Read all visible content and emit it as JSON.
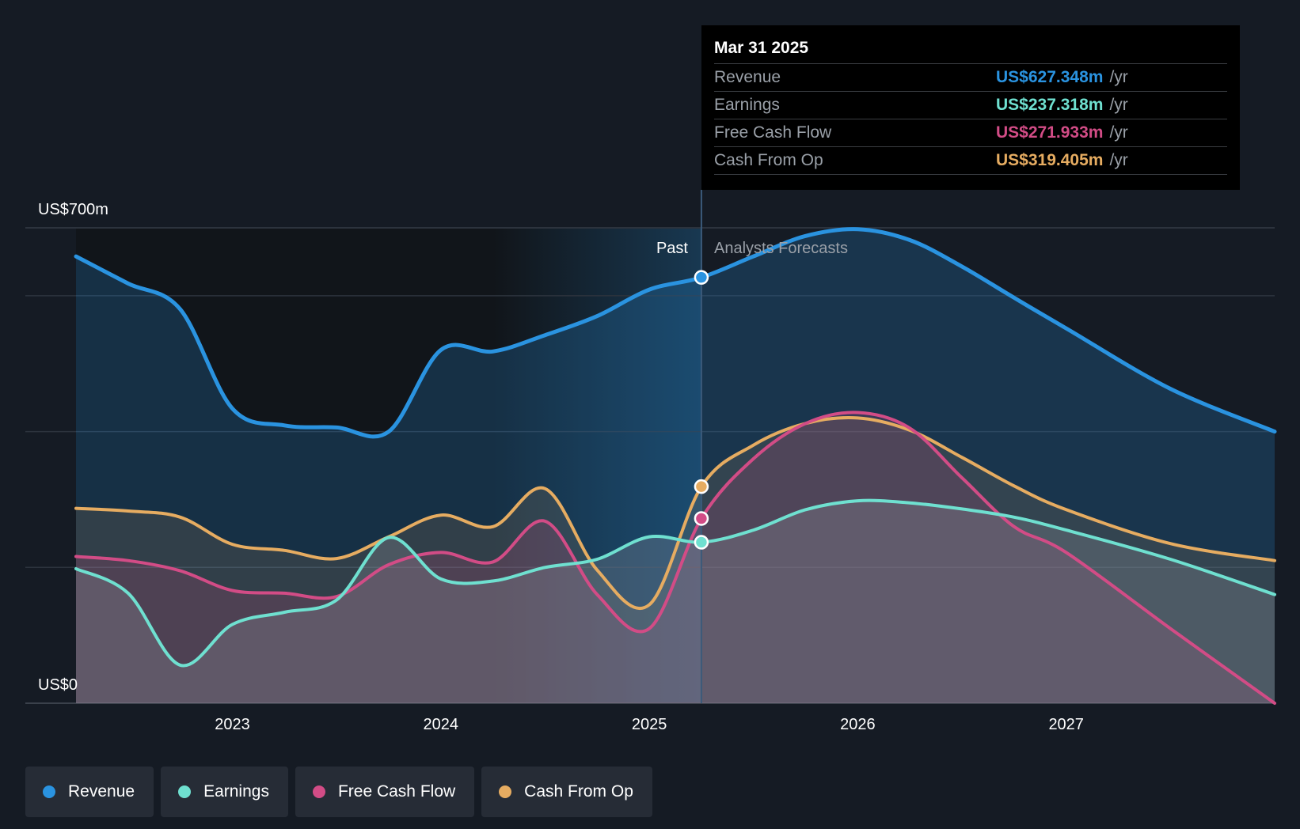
{
  "colors": {
    "revenue": "#2a93e0",
    "earnings": "#6fe0d0",
    "fcf": "#d24c86",
    "cfo": "#e6ac61",
    "background": "#151b24"
  },
  "chart_data": {
    "type": "area",
    "y_axis": {
      "top_label": "US$700m",
      "bottom_label": "US$0",
      "ylim": [
        0,
        700
      ]
    },
    "x_axis": {
      "ticks": [
        "2023",
        "2024",
        "2025",
        "2026",
        "2027"
      ],
      "xlim": [
        2022.25,
        2028.0
      ]
    },
    "past_label": "Past",
    "forecast_label": "Analysts Forecasts",
    "divider_x": 2025.25,
    "series": [
      {
        "name": "Revenue",
        "key": "revenue",
        "points": [
          [
            2022.25,
            658
          ],
          [
            2022.5,
            618
          ],
          [
            2022.75,
            580
          ],
          [
            2023.0,
            434
          ],
          [
            2023.25,
            409
          ],
          [
            2023.5,
            406
          ],
          [
            2023.75,
            400
          ],
          [
            2024.0,
            520
          ],
          [
            2024.25,
            518
          ],
          [
            2024.5,
            542
          ],
          [
            2024.75,
            570
          ],
          [
            2025.0,
            609
          ],
          [
            2025.25,
            627
          ],
          [
            2025.5,
            658
          ],
          [
            2025.75,
            688
          ],
          [
            2026.0,
            698
          ],
          [
            2026.25,
            682
          ],
          [
            2026.5,
            643
          ],
          [
            2026.75,
            597
          ],
          [
            2027.0,
            552
          ],
          [
            2027.5,
            463
          ],
          [
            2028.0,
            400
          ]
        ]
      },
      {
        "name": "Earnings",
        "key": "earnings",
        "points": [
          [
            2022.25,
            198
          ],
          [
            2022.5,
            162
          ],
          [
            2022.75,
            56
          ],
          [
            2023.0,
            116
          ],
          [
            2023.25,
            134
          ],
          [
            2023.5,
            152
          ],
          [
            2023.75,
            244
          ],
          [
            2024.0,
            183
          ],
          [
            2024.25,
            180
          ],
          [
            2024.5,
            200
          ],
          [
            2024.75,
            212
          ],
          [
            2025.0,
            245
          ],
          [
            2025.25,
            237
          ],
          [
            2025.5,
            255
          ],
          [
            2025.75,
            285
          ],
          [
            2026.0,
            298
          ],
          [
            2026.25,
            295
          ],
          [
            2026.5,
            286
          ],
          [
            2026.75,
            274
          ],
          [
            2027.0,
            255
          ],
          [
            2027.5,
            212
          ],
          [
            2028.0,
            160
          ]
        ]
      },
      {
        "name": "Free Cash Flow",
        "key": "fcf",
        "points": [
          [
            2022.25,
            216
          ],
          [
            2022.5,
            210
          ],
          [
            2022.75,
            195
          ],
          [
            2023.0,
            166
          ],
          [
            2023.25,
            162
          ],
          [
            2023.5,
            157
          ],
          [
            2023.75,
            204
          ],
          [
            2024.0,
            222
          ],
          [
            2024.25,
            208
          ],
          [
            2024.5,
            268
          ],
          [
            2024.75,
            160
          ],
          [
            2025.0,
            110
          ],
          [
            2025.25,
            272
          ],
          [
            2025.5,
            360
          ],
          [
            2025.75,
            412
          ],
          [
            2026.0,
            428
          ],
          [
            2026.25,
            405
          ],
          [
            2026.5,
            332
          ],
          [
            2026.75,
            260
          ],
          [
            2027.0,
            222
          ],
          [
            2027.5,
            110
          ],
          [
            2028.0,
            0
          ]
        ]
      },
      {
        "name": "Cash From Op",
        "key": "cfo",
        "points": [
          [
            2022.25,
            287
          ],
          [
            2022.5,
            283
          ],
          [
            2022.75,
            274
          ],
          [
            2023.0,
            234
          ],
          [
            2023.25,
            225
          ],
          [
            2023.5,
            213
          ],
          [
            2023.75,
            245
          ],
          [
            2024.0,
            277
          ],
          [
            2024.25,
            260
          ],
          [
            2024.5,
            316
          ],
          [
            2024.75,
            196
          ],
          [
            2025.0,
            145
          ],
          [
            2025.25,
            319
          ],
          [
            2025.5,
            380
          ],
          [
            2025.75,
            412
          ],
          [
            2026.0,
            420
          ],
          [
            2026.25,
            402
          ],
          [
            2026.5,
            362
          ],
          [
            2026.75,
            320
          ],
          [
            2027.0,
            285
          ],
          [
            2027.5,
            235
          ],
          [
            2028.0,
            210
          ]
        ]
      }
    ]
  },
  "tooltip": {
    "date": "Mar 31 2025",
    "rows": [
      {
        "name": "Revenue",
        "value": "US$627.348m",
        "unit": "/yr"
      },
      {
        "name": "Earnings",
        "value": "US$237.318m",
        "unit": "/yr"
      },
      {
        "name": "Free Cash Flow",
        "value": "US$271.933m",
        "unit": "/yr"
      },
      {
        "name": "Cash From Op",
        "value": "US$319.405m",
        "unit": "/yr"
      }
    ]
  },
  "legend": [
    {
      "label": "Revenue",
      "key": "revenue"
    },
    {
      "label": "Earnings",
      "key": "earnings"
    },
    {
      "label": "Free Cash Flow",
      "key": "fcf"
    },
    {
      "label": "Cash From Op",
      "key": "cfo"
    }
  ]
}
